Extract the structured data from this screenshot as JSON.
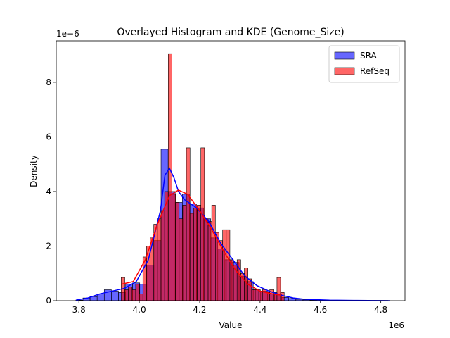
{
  "chart_data": {
    "type": "histogram",
    "title": "Overlayed Histogram and KDE (Genome_Size)",
    "x_label": "Value",
    "y_label": "Density",
    "x_offset_label": "1e6",
    "y_offset_label": "1e−6",
    "xlim": [
      3.725,
      4.88
    ],
    "ylim": [
      0,
      9.52
    ],
    "xticks": [
      3.8,
      {
        "value": 4,
        "label": "4.0"
      },
      4.2,
      4.4,
      4.6,
      4.8
    ],
    "yticks": [
      0,
      2,
      4,
      6,
      8
    ],
    "legend": "upper right",
    "series": [
      {
        "name": "SRA",
        "color": "#0000ff",
        "bins": [
          3.79,
          3.8135,
          3.837,
          3.8605,
          3.884,
          3.9075,
          3.931,
          3.9545,
          3.978,
          4.0015,
          4.025,
          4.0485,
          4.072,
          4.0955,
          4.119,
          4.1425,
          4.166,
          4.1895,
          4.213,
          4.2365,
          4.26,
          4.2835,
          4.307,
          4.3305,
          4.354,
          4.3775,
          4.401,
          4.4245,
          4.448,
          4.4715,
          4.495,
          4.5185,
          4.542,
          4.5655,
          4.589,
          4.6125,
          4.636,
          4.6595,
          4.683,
          4.7065,
          4.73,
          4.7535,
          4.777,
          4.8005,
          4.824
        ],
        "values": [
          0.02,
          0.1,
          0.15,
          0.25,
          0.4,
          0.35,
          0.3,
          0.6,
          0.65,
          0.6,
          1.3,
          2.2,
          5.55,
          4.0,
          3.6,
          3.9,
          3.55,
          3.4,
          3.0,
          2.3,
          1.9,
          1.5,
          1.4,
          0.9,
          0.7,
          0.4,
          0.35,
          0.25,
          0.25,
          0.12,
          0.08,
          0.05,
          0.03,
          0.02,
          0.01,
          0.01,
          0.01,
          0.01,
          0,
          0.01,
          0,
          0,
          0.01,
          0.01
        ],
        "kde_x": [
          3.79,
          3.83,
          3.87,
          3.91,
          3.95,
          3.99,
          4.03,
          4.07,
          4.085,
          4.1,
          4.115,
          4.13,
          4.15,
          4.19,
          4.23,
          4.27,
          4.31,
          4.35,
          4.39,
          4.43,
          4.47,
          4.51,
          4.55,
          4.63,
          4.71,
          4.83
        ],
        "kde_values": [
          0.02,
          0.1,
          0.25,
          0.35,
          0.45,
          0.7,
          1.5,
          3.3,
          4.6,
          4.85,
          4.5,
          4.0,
          3.7,
          3.4,
          2.9,
          2.1,
          1.5,
          0.9,
          0.55,
          0.35,
          0.2,
          0.1,
          0.05,
          0.02,
          0.01,
          0.0
        ]
      },
      {
        "name": "RefSeq",
        "color": "#ff0000",
        "bins": [
          3.94,
          3.952,
          3.964,
          3.976,
          3.988,
          4.0,
          4.012,
          4.024,
          4.036,
          4.048,
          4.06,
          4.072,
          4.084,
          4.096,
          4.108,
          4.12,
          4.132,
          4.144,
          4.156,
          4.168,
          4.18,
          4.192,
          4.204,
          4.216,
          4.228,
          4.24,
          4.252,
          4.264,
          4.276,
          4.288,
          4.3,
          4.312,
          4.324,
          4.336,
          4.348,
          4.36,
          4.372,
          4.384,
          4.396,
          4.408,
          4.42,
          4.432,
          4.444,
          4.456,
          4.468,
          4.48
        ],
        "values": [
          0.85,
          0.4,
          0.5,
          0.4,
          0.6,
          0.25,
          1.6,
          2.0,
          2.3,
          2.8,
          3.0,
          3.3,
          4.0,
          9.05,
          3.9,
          3.6,
          3.0,
          3.5,
          5.6,
          3.2,
          3.4,
          3.5,
          5.6,
          3.0,
          2.9,
          3.5,
          2.5,
          2.2,
          2.6,
          2.6,
          1.5,
          1.3,
          1.5,
          1.0,
          1.2,
          0.8,
          0.4,
          0.4,
          0.35,
          0.4,
          0.3,
          0.4,
          0.3,
          0.85,
          0.3
        ],
        "kde_x": [
          3.94,
          3.98,
          4.02,
          4.06,
          4.1,
          4.13,
          4.16,
          4.2,
          4.24,
          4.28,
          4.32,
          4.36,
          4.4,
          4.44,
          4.47
        ],
        "kde_values": [
          0.6,
          0.7,
          1.5,
          2.8,
          3.85,
          4.05,
          3.9,
          3.3,
          2.6,
          1.8,
          1.1,
          0.6,
          0.35,
          0.25,
          0.2
        ]
      }
    ]
  }
}
